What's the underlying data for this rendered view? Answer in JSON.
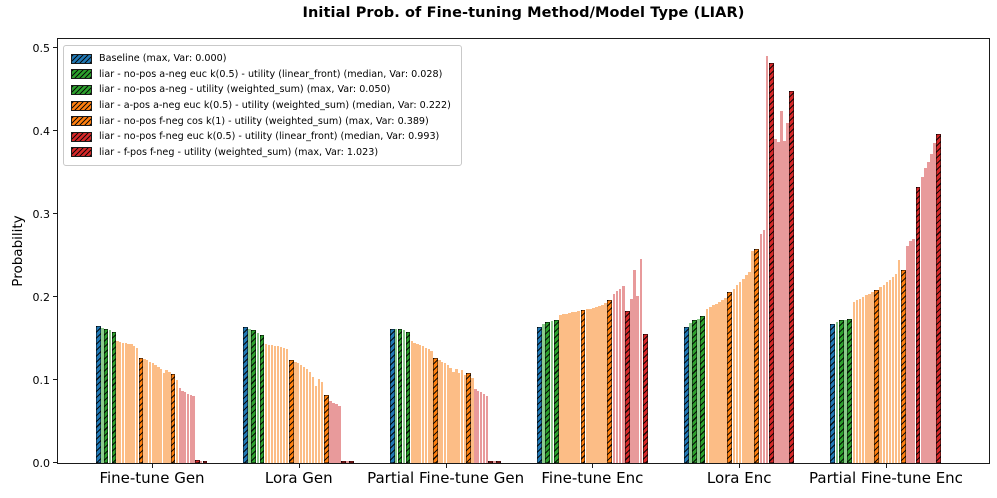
{
  "chart_data": {
    "type": "bar",
    "title": "Initial Prob. of Fine-tuning Method/Model Type (LIAR)",
    "xlabel": "",
    "ylabel": "Probability",
    "ylim": [
      0,
      0.5
    ],
    "yticks": [
      "0.0",
      "0.1",
      "0.2",
      "0.3",
      "0.4",
      "0.5"
    ],
    "grid": false,
    "legend_position": "upper left",
    "hatch_style": "///",
    "colors": {
      "b": "#1f77b4",
      "g": "#2ca02c",
      "o": "#ff7f0e",
      "r": "#d62728",
      "lg": "#8ccb8c",
      "lo": "#fcbd86",
      "lr": "#e89a9b"
    },
    "hatched_keys": [
      "b",
      "g",
      "o",
      "r"
    ],
    "legend": [
      {
        "color": "b",
        "label": "Baseline (max, Var: 0.000)"
      },
      {
        "color": "g",
        "label": "liar - no-pos a-neg euc  k(0.5) - utility (linear_front) (median, Var: 0.028)"
      },
      {
        "color": "g",
        "label": "liar - no-pos a-neg - utility (weighted_sum) (max, Var: 0.050)"
      },
      {
        "color": "o",
        "label": "liar - a-pos a-neg euc  k(0.5) - utility (weighted_sum) (median, Var: 0.222)"
      },
      {
        "color": "o",
        "label": "liar - no-pos f-neg cos  k(1) - utility (weighted_sum) (max, Var: 0.389)"
      },
      {
        "color": "r",
        "label": "liar - no-pos f-neg euc  k(0.5) - utility (linear_front) (median, Var: 0.993)"
      },
      {
        "color": "r",
        "label": "liar - f-pos f-neg - utility (weighted_sum) (max, Var: 1.023)"
      }
    ],
    "categories": [
      "Fine-tune Gen",
      "Lora Gen",
      "Partial Fine-tune Gen",
      "Fine-tune Enc",
      "Lora Enc",
      "Partial Fine-tune Enc"
    ],
    "groups": [
      {
        "label": "Fine-tune Gen",
        "bars": [
          [
            "b",
            0.165
          ],
          [
            "lg",
            0.163
          ],
          [
            "g",
            0.162
          ],
          [
            "lg",
            0.16
          ],
          [
            "g",
            0.158
          ],
          [
            "lo",
            0.147
          ],
          [
            "lo",
            0.146
          ],
          [
            "lo",
            0.145
          ],
          [
            "lo",
            0.1445
          ],
          [
            "lo",
            0.144
          ],
          [
            "lo",
            0.143
          ],
          [
            "lo",
            0.141
          ],
          [
            "lo",
            0.139
          ],
          [
            "o",
            0.127
          ],
          [
            "lo",
            0.125
          ],
          [
            "lo",
            0.124
          ],
          [
            "lo",
            0.122
          ],
          [
            "lo",
            0.12
          ],
          [
            "lo",
            0.118
          ],
          [
            "lo",
            0.116
          ],
          [
            "lo",
            0.113
          ],
          [
            "lo",
            0.108
          ],
          [
            "lo",
            0.112
          ],
          [
            "lo",
            0.11
          ],
          [
            "o",
            0.107
          ],
          [
            "lo",
            0.1
          ],
          [
            "lr",
            0.09
          ],
          [
            "lr",
            0.087
          ],
          [
            "lr",
            0.085
          ],
          [
            "lr",
            0.083
          ],
          [
            "lr",
            0.082
          ],
          [
            "lr",
            0.081
          ],
          [
            "r",
            0.004
          ],
          [
            "lr",
            0.003
          ],
          [
            "r",
            0.002
          ]
        ]
      },
      {
        "label": "Lora Gen",
        "bars": [
          [
            "b",
            0.164
          ],
          [
            "lg",
            0.161
          ],
          [
            "g",
            0.16
          ],
          [
            "lg",
            0.157
          ],
          [
            "g",
            0.154
          ],
          [
            "lo",
            0.143
          ],
          [
            "lo",
            0.1425
          ],
          [
            "lo",
            0.142
          ],
          [
            "lo",
            0.1415
          ],
          [
            "lo",
            0.141
          ],
          [
            "lo",
            0.14
          ],
          [
            "lo",
            0.139
          ],
          [
            "lo",
            0.137
          ],
          [
            "o",
            0.124
          ],
          [
            "lo",
            0.122
          ],
          [
            "lo",
            0.12
          ],
          [
            "lo",
            0.118
          ],
          [
            "lo",
            0.116
          ],
          [
            "lo",
            0.113
          ],
          [
            "lo",
            0.11
          ],
          [
            "lo",
            0.104
          ],
          [
            "lo",
            0.093
          ],
          [
            "lo",
            0.101
          ],
          [
            "lo",
            0.098
          ],
          [
            "o",
            0.082
          ],
          [
            "lr",
            0.075
          ],
          [
            "lr",
            0.072
          ],
          [
            "lr",
            0.071
          ],
          [
            "lr",
            0.069
          ],
          [
            "r",
            0.003
          ],
          [
            "lr",
            0.002
          ],
          [
            "r",
            0.002
          ]
        ]
      },
      {
        "label": "Partial Fine-tune Gen",
        "bars": [
          [
            "b",
            0.162
          ],
          [
            "lg",
            0.161
          ],
          [
            "g",
            0.161
          ],
          [
            "lg",
            0.16
          ],
          [
            "g",
            0.158
          ],
          [
            "lo",
            0.147
          ],
          [
            "lo",
            0.145
          ],
          [
            "lo",
            0.144
          ],
          [
            "lo",
            0.142
          ],
          [
            "lo",
            0.141
          ],
          [
            "lo",
            0.139
          ],
          [
            "lo",
            0.137
          ],
          [
            "lo",
            0.135
          ],
          [
            "o",
            0.126
          ],
          [
            "lo",
            0.124
          ],
          [
            "lo",
            0.122
          ],
          [
            "lo",
            0.12
          ],
          [
            "lo",
            0.118
          ],
          [
            "lo",
            0.115
          ],
          [
            "lo",
            0.11
          ],
          [
            "lo",
            0.113
          ],
          [
            "lo",
            0.108
          ],
          [
            "lo",
            0.112
          ],
          [
            "lo",
            0.106
          ],
          [
            "o",
            0.109
          ],
          [
            "lo",
            0.103
          ],
          [
            "lr",
            0.089
          ],
          [
            "lr",
            0.087
          ],
          [
            "lr",
            0.085
          ],
          [
            "lr",
            0.083
          ],
          [
            "lr",
            0.081
          ],
          [
            "r",
            0.003
          ],
          [
            "lr",
            0.002
          ],
          [
            "r",
            0.002
          ]
        ]
      },
      {
        "label": "Fine-tune Enc",
        "bars": [
          [
            "b",
            0.164
          ],
          [
            "lg",
            0.168
          ],
          [
            "g",
            0.17
          ],
          [
            "lg",
            0.171
          ],
          [
            "g",
            0.172
          ],
          [
            "lo",
            0.178
          ],
          [
            "lo",
            0.179
          ],
          [
            "lo",
            0.18
          ],
          [
            "lo",
            0.181
          ],
          [
            "lo",
            0.182
          ],
          [
            "lo",
            0.182
          ],
          [
            "lo",
            0.183
          ],
          [
            "o",
            0.184
          ],
          [
            "lo",
            0.185
          ],
          [
            "lo",
            0.186
          ],
          [
            "lo",
            0.187
          ],
          [
            "lo",
            0.188
          ],
          [
            "lo",
            0.189
          ],
          [
            "lo",
            0.191
          ],
          [
            "lo",
            0.193
          ],
          [
            "o",
            0.196
          ],
          [
            "lr",
            0.204
          ],
          [
            "lr",
            0.207
          ],
          [
            "lr",
            0.21
          ],
          [
            "lr",
            0.213
          ],
          [
            "r",
            0.183
          ],
          [
            "lr",
            0.198
          ],
          [
            "lr",
            0.233
          ],
          [
            "lr",
            0.201
          ],
          [
            "lr",
            0.246
          ],
          [
            "r",
            0.155
          ]
        ]
      },
      {
        "label": "Lora Enc",
        "bars": [
          [
            "b",
            0.164
          ],
          [
            "lg",
            0.169
          ],
          [
            "g",
            0.172
          ],
          [
            "lg",
            0.174
          ],
          [
            "g",
            0.177
          ],
          [
            "lo",
            0.186
          ],
          [
            "lo",
            0.188
          ],
          [
            "lo",
            0.19
          ],
          [
            "lo",
            0.192
          ],
          [
            "lo",
            0.194
          ],
          [
            "lo",
            0.196
          ],
          [
            "lo",
            0.199
          ],
          [
            "o",
            0.206
          ],
          [
            "lo",
            0.21
          ],
          [
            "lo",
            0.214
          ],
          [
            "lo",
            0.218
          ],
          [
            "lo",
            0.222
          ],
          [
            "lo",
            0.226
          ],
          [
            "lo",
            0.23
          ],
          [
            "lo",
            0.255
          ],
          [
            "o",
            0.258
          ],
          [
            "lr",
            0.276
          ],
          [
            "lr",
            0.281
          ],
          [
            "lr",
            0.49
          ],
          [
            "r",
            0.482
          ],
          [
            "lr",
            0.39
          ],
          [
            "lr",
            0.387
          ],
          [
            "lr",
            0.424
          ],
          [
            "lr",
            0.388
          ],
          [
            "lr",
            0.41
          ],
          [
            "r",
            0.448
          ]
        ]
      },
      {
        "label": "Partial Fine-tune Enc",
        "bars": [
          [
            "b",
            0.168
          ],
          [
            "lg",
            0.17
          ],
          [
            "g",
            0.172
          ],
          [
            "lg",
            0.172
          ],
          [
            "g",
            0.174
          ],
          [
            "lo",
            0.194
          ],
          [
            "lo",
            0.196
          ],
          [
            "lo",
            0.198
          ],
          [
            "lo",
            0.2
          ],
          [
            "lo",
            0.202
          ],
          [
            "lo",
            0.204
          ],
          [
            "lo",
            0.206
          ],
          [
            "o",
            0.209
          ],
          [
            "lo",
            0.212
          ],
          [
            "lo",
            0.215
          ],
          [
            "lo",
            0.218
          ],
          [
            "lo",
            0.221
          ],
          [
            "lo",
            0.224
          ],
          [
            "lo",
            0.228
          ],
          [
            "lo",
            0.245
          ],
          [
            "o",
            0.233
          ],
          [
            "lr",
            0.262
          ],
          [
            "lr",
            0.268
          ],
          [
            "lr",
            0.27
          ],
          [
            "r",
            0.333
          ],
          [
            "lr",
            0.345
          ],
          [
            "lr",
            0.355
          ],
          [
            "lr",
            0.363
          ],
          [
            "lr",
            0.372
          ],
          [
            "lr",
            0.385
          ],
          [
            "r",
            0.396
          ]
        ]
      }
    ]
  }
}
